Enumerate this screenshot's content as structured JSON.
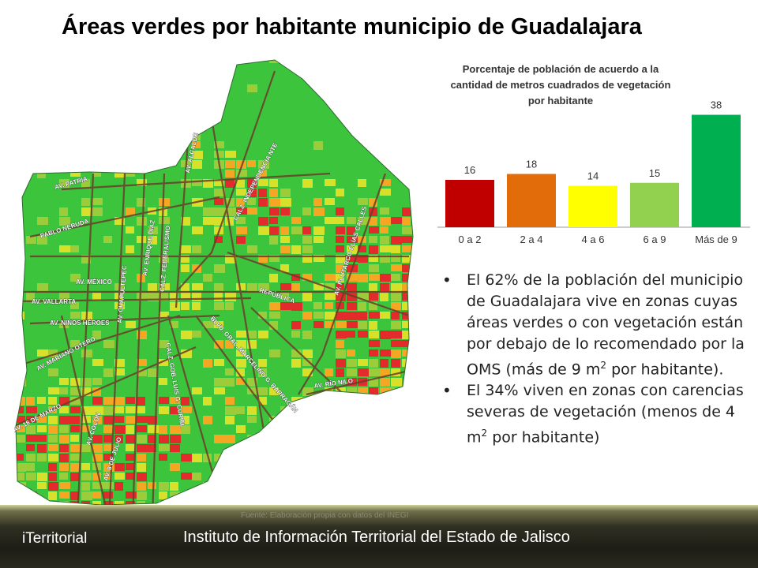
{
  "slide": {
    "title": "Áreas verdes por habitante municipio de  Guadalajara"
  },
  "map": {
    "streets": [
      {
        "label": "AV. ALCALDE"
      },
      {
        "label": "CALZ. INDEPENDENCIA NTE"
      },
      {
        "label": "AV. PATRIA"
      },
      {
        "label": "PABLO NERUDA"
      },
      {
        "label": "AV. ENRIQUE DÍAZ"
      },
      {
        "label": "CALZ. FEDERALISMO"
      },
      {
        "label": "AV. CHAPULTEPEC"
      },
      {
        "label": "AV. MÉXICO"
      },
      {
        "label": "AV. VALLARTA"
      },
      {
        "label": "AV. NIÑOS HÉROES"
      },
      {
        "label": "AV. MARIANO OTERO"
      },
      {
        "label": "AV. PLUTARCO ELÍAS CALLES"
      },
      {
        "label": "REPÚBLICA"
      },
      {
        "label": "BLVD. GRAL. MARCELINO G. BARRAGÁN"
      },
      {
        "label": "CALZ. GOB. LUIS G. CURIEL"
      },
      {
        "label": "AV. RÍO NILO"
      },
      {
        "label": "AV. 8 DE JULIO"
      },
      {
        "label": "AV. COLÓN"
      },
      {
        "label": "AV. 18 DE MARZO"
      }
    ]
  },
  "chart_data": {
    "type": "bar",
    "title": "Porcentaje de población de acuerdo a la cantidad de metros cuadrados de vegetación por habitante",
    "title_lines": [
      "Porcentaje de población de acuerdo a la",
      "cantidad de metros cuadrados de vegetación",
      "por habitante"
    ],
    "categories": [
      "0 a 2",
      "2 a 4",
      "4 a 6",
      "6 a 9",
      "Más de 9"
    ],
    "values": [
      16,
      18,
      14,
      15,
      38
    ],
    "colors": [
      "#c00000",
      "#e36c0a",
      "#ffff00",
      "#92d050",
      "#00b050"
    ],
    "ylim": [
      0,
      40
    ],
    "grid": false,
    "xlabel": "",
    "ylabel": ""
  },
  "bullets": [
    {
      "before": "El 62% de la población del municipio de Guadalajara vive en zonas cuyas áreas verdes o con vegetación están por debajo de lo recomendado por la OMS (más de 9 m",
      "sup": "2",
      "after": " por habitante)."
    },
    {
      "before": "El 34% viven en zonas con carencias severas de vegetación (menos de 4 m",
      "sup": "2",
      "after": " por habitante)"
    }
  ],
  "footer": {
    "brand": "iTerritorial",
    "institute": "Instituto de Información Territorial del Estado de Jalisco",
    "faint": "Fuente: Elaboración propia con datos del INEGI"
  },
  "colors": {
    "red": "#e32b2b",
    "orange": "#f5a623",
    "yellow": "#d9e02a",
    "lightgreen": "#9ccc3a",
    "green": "#3cc43c",
    "road": "#6b3c2a"
  }
}
